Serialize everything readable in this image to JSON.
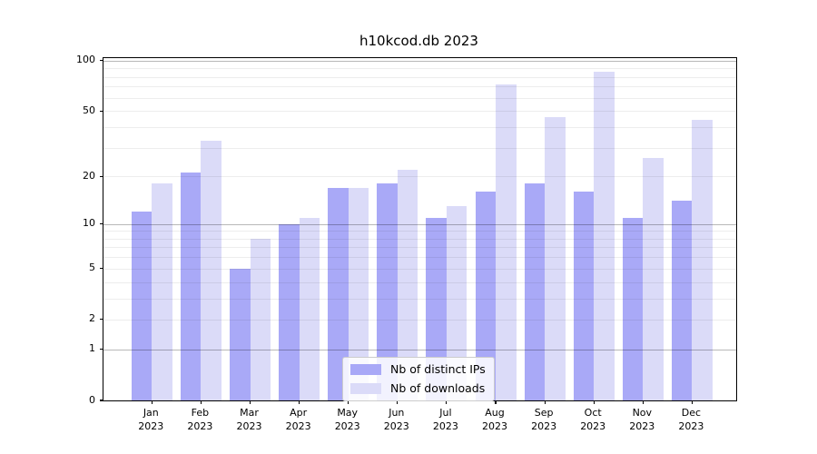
{
  "chart_data": {
    "type": "bar",
    "title": "h10kcod.db 2023",
    "categories": [
      "Jan",
      "Feb",
      "Mar",
      "Apr",
      "May",
      "Jun",
      "Jul",
      "Aug",
      "Sep",
      "Oct",
      "Nov",
      "Dec"
    ],
    "category_year": "2023",
    "series": [
      {
        "name": "Nb of distinct IPs",
        "color": "#a9a9f7",
        "values": [
          12,
          21,
          5,
          10,
          17,
          18,
          11,
          16,
          18,
          16,
          11,
          14
        ]
      },
      {
        "name": "Nb of downloads",
        "color": "#dbdbf8",
        "values": [
          18,
          33,
          8,
          11,
          17,
          22,
          13,
          72,
          46,
          86,
          26,
          44
        ]
      }
    ],
    "yscale": "log1p",
    "ylim": [
      0,
      103.5
    ],
    "ytick_values": [
      100,
      50,
      20,
      10,
      5,
      2,
      1,
      0
    ],
    "ytick_labels": [
      "100",
      "50",
      "20",
      "10",
      "5",
      "2",
      "1",
      "0"
    ],
    "grid": {
      "major_values": [
        1,
        10,
        100
      ],
      "minor_values": [
        2,
        3,
        4,
        5,
        6,
        7,
        8,
        9,
        20,
        30,
        40,
        50,
        60,
        70,
        80,
        90
      ]
    },
    "legend_position": "lower center",
    "xlabel": "",
    "ylabel": ""
  },
  "colors": {
    "background": "#ffffff",
    "spine": "#000000",
    "major_grid": "rgba(0,0,0,0.28)",
    "minor_grid": "rgba(0,0,0,0.07)"
  }
}
